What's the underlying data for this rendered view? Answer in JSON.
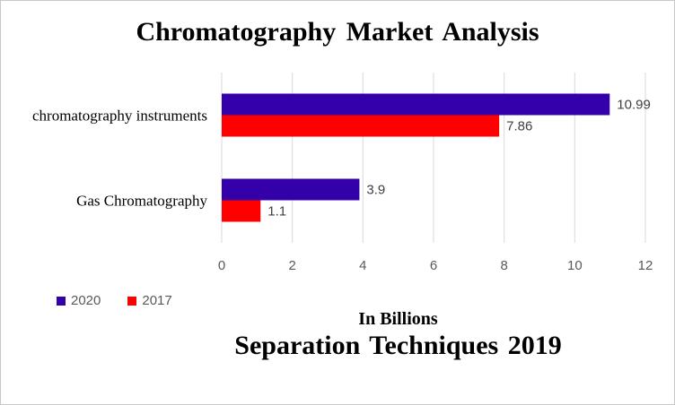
{
  "chart_data": {
    "type": "bar",
    "orientation": "horizontal",
    "title": "Chromatography Market Analysis",
    "xlabel": "In Billions",
    "footnote": "Separation Techniques 2019",
    "categories": [
      "chromatography instruments",
      "Gas Chromatography"
    ],
    "series": [
      {
        "name": "2020",
        "color": "#3300aa",
        "values": [
          10.99,
          3.9
        ],
        "labels": [
          "10.99",
          "3.9"
        ]
      },
      {
        "name": "2017",
        "color": "#ff0000",
        "values": [
          7.86,
          1.1
        ],
        "labels": [
          "7.86",
          "1.1"
        ]
      }
    ],
    "xlim": [
      0,
      12
    ],
    "xticks": [
      "0",
      "2",
      "4",
      "6",
      "8",
      "10",
      "12"
    ],
    "grid": true,
    "legend_position": "bottom-left"
  }
}
